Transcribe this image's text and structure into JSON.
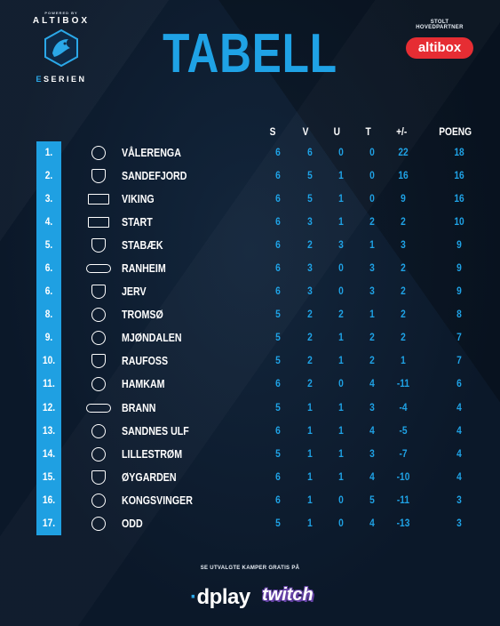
{
  "logo": {
    "powered": "POWERED BY",
    "brand": "ALTIBOX",
    "esport_e": "E",
    "esport_rest": "SERIEN"
  },
  "title": "TABELL",
  "partner": {
    "label": "STOLT HOVEDPARTNER",
    "name": "altibox"
  },
  "columns": [
    "S",
    "V",
    "U",
    "T",
    "+/-",
    "POENG"
  ],
  "accent_color": "#1fa2e5",
  "table": [
    {
      "rank": "1.",
      "club": "VÅLERENGA",
      "s": "6",
      "v": "6",
      "u": "0",
      "t": "0",
      "diff": "22",
      "poeng": "18",
      "crest": "round"
    },
    {
      "rank": "2.",
      "club": "SANDEFJORD",
      "s": "6",
      "v": "5",
      "u": "1",
      "t": "0",
      "diff": "16",
      "poeng": "16",
      "crest": "shield"
    },
    {
      "rank": "3.",
      "club": "VIKING",
      "s": "6",
      "v": "5",
      "u": "1",
      "t": "0",
      "diff": "9",
      "poeng": "16",
      "crest": "flag"
    },
    {
      "rank": "4.",
      "club": "START",
      "s": "6",
      "v": "3",
      "u": "1",
      "t": "2",
      "diff": "2",
      "poeng": "10",
      "crest": "flag"
    },
    {
      "rank": "5.",
      "club": "STABÆK",
      "s": "6",
      "v": "2",
      "u": "3",
      "t": "1",
      "diff": "3",
      "poeng": "9",
      "crest": "shield"
    },
    {
      "rank": "6.",
      "club": "RANHEIM",
      "s": "6",
      "v": "3",
      "u": "0",
      "t": "3",
      "diff": "2",
      "poeng": "9",
      "crest": "wide"
    },
    {
      "rank": "6.",
      "club": "JERV",
      "s": "6",
      "v": "3",
      "u": "0",
      "t": "3",
      "diff": "2",
      "poeng": "9",
      "crest": "shield"
    },
    {
      "rank": "8.",
      "club": "TROMSØ",
      "s": "5",
      "v": "2",
      "u": "2",
      "t": "1",
      "diff": "2",
      "poeng": "8",
      "crest": "round"
    },
    {
      "rank": "9.",
      "club": "MJØNDALEN",
      "s": "5",
      "v": "2",
      "u": "1",
      "t": "2",
      "diff": "2",
      "poeng": "7",
      "crest": "round"
    },
    {
      "rank": "10.",
      "club": "RAUFOSS",
      "s": "5",
      "v": "2",
      "u": "1",
      "t": "2",
      "diff": "1",
      "poeng": "7",
      "crest": "shield"
    },
    {
      "rank": "11.",
      "club": "HAMKAM",
      "s": "6",
      "v": "2",
      "u": "0",
      "t": "4",
      "diff": "-11",
      "poeng": "6",
      "crest": "round"
    },
    {
      "rank": "12.",
      "club": "BRANN",
      "s": "5",
      "v": "1",
      "u": "1",
      "t": "3",
      "diff": "-4",
      "poeng": "4",
      "crest": "wide"
    },
    {
      "rank": "13.",
      "club": "SANDNES ULF",
      "s": "6",
      "v": "1",
      "u": "1",
      "t": "4",
      "diff": "-5",
      "poeng": "4",
      "crest": "round"
    },
    {
      "rank": "14.",
      "club": "LILLESTRØM",
      "s": "5",
      "v": "1",
      "u": "1",
      "t": "3",
      "diff": "-7",
      "poeng": "4",
      "crest": "round"
    },
    {
      "rank": "15.",
      "club": "ØYGARDEN",
      "s": "6",
      "v": "1",
      "u": "1",
      "t": "4",
      "diff": "-10",
      "poeng": "4",
      "crest": "shield"
    },
    {
      "rank": "16.",
      "club": "KONGSVINGER",
      "s": "6",
      "v": "1",
      "u": "0",
      "t": "5",
      "diff": "-11",
      "poeng": "3",
      "crest": "round"
    },
    {
      "rank": "17.",
      "club": "ODD",
      "s": "5",
      "v": "1",
      "u": "0",
      "t": "4",
      "diff": "-13",
      "poeng": "3",
      "crest": "round"
    }
  ],
  "footer": {
    "label": "SE UTVALGTE KAMPER GRATIS PÅ",
    "dplay": "dplay",
    "twitch": "twitch"
  }
}
